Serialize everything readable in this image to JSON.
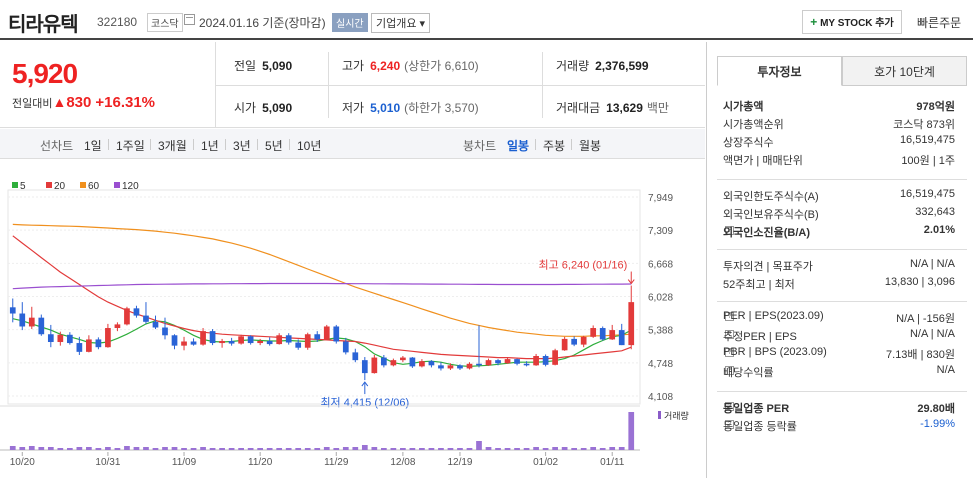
{
  "header": {
    "name": "티라유텍",
    "code": "322180",
    "market": "코스닥",
    "date": "2024.01.16 기준(장마감)",
    "realtime": "실시간",
    "overview": "기업개요 ▾",
    "mystock": "MY STOCK 추가",
    "quick_order": "빠른주문"
  },
  "price": {
    "current": "5,920",
    "change_label": "전일대비",
    "change": "830",
    "change_pct": "+16.31%"
  },
  "stats": {
    "prev_label": "전일",
    "prev": "5,090",
    "high_label": "고가",
    "high": "6,240",
    "upper_limit": "(상한가 6,610)",
    "volume_label": "거래량",
    "volume": "2,376,599",
    "open_label": "시가",
    "open": "5,090",
    "low_label": "저가",
    "low": "5,010",
    "lower_limit": "(하한가 3,570)",
    "amount_label": "거래대금",
    "amount": "13,629",
    "amount_unit": "백만"
  },
  "tabs": {
    "line_chart": "선차트",
    "periods": [
      "1일",
      "1주일",
      "3개월",
      "1년",
      "3년",
      "5년",
      "10년"
    ],
    "candle": "봉차트",
    "candle_periods": [
      "일봉",
      "주봉",
      "월봉"
    ],
    "active_candle": "일봉"
  },
  "chart_data": {
    "type": "candlestick",
    "legend": [
      {
        "name": "5",
        "color": "#2eae3b"
      },
      {
        "name": "20",
        "color": "#e23a3a"
      },
      {
        "name": "60",
        "color": "#f0901e"
      },
      {
        "name": "120",
        "color": "#9a4fd0"
      }
    ],
    "y_ticks": [
      "7,949",
      "7,309",
      "6,668",
      "6,028",
      "5,388",
      "4,748",
      "4,108"
    ],
    "ylim": [
      4108,
      7949
    ],
    "x_ticks": [
      "10/20",
      "10/31",
      "11/09",
      "11/20",
      "11/29",
      "12/08",
      "12/19",
      "01/02",
      "01/11"
    ],
    "high_annotation": "최고 6,240 (01/16)",
    "low_annotation": "최저 4,415 (12/06)",
    "volume_label": "거래량",
    "candles": [
      [
        5820,
        5990,
        5530,
        5700
      ],
      [
        5700,
        5920,
        5380,
        5450
      ],
      [
        5450,
        5830,
        5400,
        5620
      ],
      [
        5620,
        5680,
        5270,
        5300
      ],
      [
        5300,
        5480,
        5050,
        5150
      ],
      [
        5150,
        5350,
        5080,
        5290
      ],
      [
        5290,
        5340,
        5100,
        5130
      ],
      [
        5130,
        5250,
        4900,
        4960
      ],
      [
        4960,
        5280,
        4950,
        5200
      ],
      [
        5200,
        5240,
        5010,
        5050
      ],
      [
        5050,
        5500,
        5040,
        5420
      ],
      [
        5420,
        5530,
        5360,
        5490
      ],
      [
        5490,
        5830,
        5470,
        5800
      ],
      [
        5800,
        5850,
        5620,
        5660
      ],
      [
        5660,
        5920,
        5500,
        5540
      ],
      [
        5540,
        5660,
        5400,
        5430
      ],
      [
        5430,
        5620,
        5200,
        5280
      ],
      [
        5280,
        5300,
        5010,
        5080
      ],
      [
        5080,
        5250,
        4990,
        5160
      ],
      [
        5160,
        5220,
        5080,
        5100
      ],
      [
        5100,
        5420,
        5080,
        5360
      ],
      [
        5360,
        5400,
        5090,
        5130
      ],
      [
        5130,
        5210,
        5040,
        5170
      ],
      [
        5170,
        5230,
        5080,
        5120
      ],
      [
        5120,
        5290,
        5100,
        5260
      ],
      [
        5260,
        5280,
        5100,
        5130
      ],
      [
        5130,
        5210,
        5090,
        5170
      ],
      [
        5170,
        5240,
        5080,
        5110
      ],
      [
        5110,
        5320,
        5100,
        5280
      ],
      [
        5280,
        5320,
        5100,
        5140
      ],
      [
        5140,
        5200,
        5000,
        5040
      ],
      [
        5040,
        5330,
        5000,
        5300
      ],
      [
        5300,
        5360,
        5150,
        5200
      ],
      [
        5200,
        5480,
        5180,
        5450
      ],
      [
        5450,
        5480,
        5120,
        5160
      ],
      [
        5160,
        5230,
        4910,
        4950
      ],
      [
        4950,
        5020,
        4760,
        4800
      ],
      [
        4800,
        4860,
        4415,
        4550
      ],
      [
        4550,
        4900,
        4540,
        4850
      ],
      [
        4850,
        4900,
        4660,
        4700
      ],
      [
        4700,
        4830,
        4680,
        4800
      ],
      [
        4800,
        4880,
        4760,
        4850
      ],
      [
        4850,
        4860,
        4650,
        4680
      ],
      [
        4680,
        4820,
        4660,
        4780
      ],
      [
        4780,
        4800,
        4660,
        4700
      ],
      [
        4700,
        4760,
        4600,
        4640
      ],
      [
        4640,
        4740,
        4610,
        4700
      ],
      [
        4700,
        4720,
        4610,
        4640
      ],
      [
        4640,
        4760,
        4620,
        4730
      ],
      [
        4730,
        5470,
        4660,
        4700
      ],
      [
        4700,
        4830,
        4690,
        4800
      ],
      [
        4800,
        4820,
        4700,
        4740
      ],
      [
        4740,
        4850,
        4730,
        4820
      ],
      [
        4820,
        4830,
        4700,
        4730
      ],
      [
        4730,
        4780,
        4680,
        4700
      ],
      [
        4700,
        4920,
        4690,
        4880
      ],
      [
        4880,
        4910,
        4680,
        4710
      ],
      [
        4710,
        5020,
        4700,
        4990
      ],
      [
        4990,
        5250,
        4980,
        5210
      ],
      [
        5210,
        5260,
        5070,
        5100
      ],
      [
        5100,
        5270,
        5050,
        5250
      ],
      [
        5250,
        5470,
        5230,
        5420
      ],
      [
        5420,
        5450,
        5180,
        5200
      ],
      [
        5200,
        5480,
        5190,
        5380
      ],
      [
        5380,
        5500,
        5090,
        5090
      ],
      [
        5090,
        6240,
        5010,
        5920
      ]
    ],
    "ma": {
      "5": [
        5600,
        5560,
        5500,
        5440,
        5380,
        5300,
        5250,
        5200,
        5140,
        5130,
        5150,
        5220,
        5300,
        5400,
        5500,
        5560,
        5540,
        5470,
        5380,
        5280,
        5200,
        5160,
        5150,
        5160,
        5180,
        5190,
        5180,
        5170,
        5170,
        5180,
        5170,
        5160,
        5170,
        5200,
        5230,
        5210,
        5160,
        5060,
        4920,
        4840,
        4750,
        4720,
        4740,
        4770,
        4780,
        4760,
        4720,
        4690,
        4680,
        4690,
        4700,
        4720,
        4740,
        4760,
        4760,
        4760,
        4770,
        4790,
        4830,
        4900,
        5000,
        5100,
        5180,
        5250,
        5280,
        5380
      ],
      "20": [
        7200,
        7060,
        6920,
        6780,
        6640,
        6500,
        6380,
        6260,
        6140,
        6020,
        5920,
        5840,
        5760,
        5690,
        5630,
        5570,
        5510,
        5460,
        5410,
        5370,
        5340,
        5320,
        5300,
        5290,
        5280,
        5270,
        5260,
        5250,
        5240,
        5230,
        5220,
        5210,
        5200,
        5190,
        5180,
        5170,
        5160,
        5130,
        5090,
        5050,
        5010,
        4990,
        4970,
        4950,
        4930,
        4910,
        4900,
        4890,
        4880,
        4870,
        4860,
        4850,
        4850,
        4840,
        4830,
        4830,
        4830,
        4840,
        4860,
        4880,
        4900,
        4920,
        4940,
        4960,
        4980,
        5050
      ],
      "60": [
        7420,
        7410,
        7405,
        7400,
        7395,
        7390,
        7385,
        7380,
        7370,
        7360,
        7350,
        7340,
        7330,
        7320,
        7305,
        7290,
        7270,
        7250,
        7225,
        7200,
        7170,
        7140,
        7100,
        7060,
        7010,
        6960,
        6900,
        6840,
        6770,
        6700,
        6630,
        6560,
        6490,
        6420,
        6350,
        6280,
        6210,
        6150,
        6090,
        6030,
        5970,
        5910,
        5850,
        5790,
        5730,
        5670,
        5610,
        5560,
        5510,
        5470,
        5430,
        5400,
        5370,
        5340,
        5320,
        5300,
        5280,
        5270,
        5260,
        5260,
        5260,
        5270,
        5270,
        5280,
        5290,
        5300
      ],
      "120": [
        6180,
        6190,
        6200,
        6210,
        6215,
        6220,
        6225,
        6230,
        6235,
        6240,
        6245,
        6250,
        6255,
        6260,
        6262,
        6264,
        6266,
        6268,
        6270,
        6271,
        6272,
        6273,
        6274,
        6275,
        6276,
        6277,
        6278,
        6279,
        6280,
        6280,
        6280,
        6280,
        6280,
        6279,
        6278,
        6277,
        6276,
        6275,
        6274,
        6273,
        6272,
        6271,
        6270,
        6269,
        6268,
        6267,
        6266,
        6265,
        6264,
        6263,
        6262,
        6261,
        6260,
        6260,
        6260,
        6260,
        6260,
        6261,
        6262,
        6263,
        6264,
        6265,
        6266,
        6267,
        6268,
        6270
      ]
    },
    "volumes": [
      4,
      3,
      4,
      3,
      3,
      2,
      2,
      3,
      3,
      2,
      3,
      2,
      4,
      3,
      3,
      2,
      3,
      3,
      2,
      2,
      3,
      2,
      2,
      2,
      2,
      2,
      2,
      2,
      2,
      2,
      2,
      2,
      2,
      3,
      2,
      3,
      3,
      5,
      3,
      2,
      2,
      2,
      2,
      2,
      2,
      2,
      2,
      2,
      2,
      9,
      3,
      2,
      2,
      2,
      2,
      3,
      2,
      3,
      3,
      2,
      2,
      3,
      2,
      3,
      3,
      38
    ]
  },
  "info": {
    "tab_invest": "투자정보",
    "tab_quote": "호가 10단계",
    "rows1": [
      {
        "k": "시가총액",
        "v": "978억원",
        "bold": true
      },
      {
        "k": "시가총액순위",
        "v": "코스닥 873위"
      },
      {
        "k": "상장주식수",
        "v": "16,519,475"
      },
      {
        "k": "액면가 | 매매단위",
        "v": "100원 | 1주"
      }
    ],
    "rows2": [
      {
        "k": "외국인한도주식수(A)",
        "v": "16,519,475"
      },
      {
        "k": "외국인보유주식수(B)",
        "v": "332,643"
      },
      {
        "k": "외국인소진율(B/A)",
        "v": "2.01%",
        "bold": true
      }
    ],
    "rows3": [
      {
        "k": "투자의견 | 목표주가",
        "v": "N/A | N/A"
      },
      {
        "k": "52주최고 | 최저",
        "v": "13,830 | 3,096"
      }
    ],
    "rows4": [
      {
        "k": "PER | EPS(2023.09)",
        "v": "N/A | -156원"
      },
      {
        "k": "추정PER | EPS",
        "v": "N/A | N/A"
      },
      {
        "k": "PBR | BPS (2023.09)",
        "v": "7.13배 | 830원"
      },
      {
        "k": "배당수익률",
        "v": "N/A"
      }
    ],
    "rows5": [
      {
        "k": "동일업종 PER",
        "v": "29.80배",
        "bold": true
      },
      {
        "k": "동일업종 등락률",
        "v": "-1.99%",
        "blue": true
      }
    ]
  }
}
